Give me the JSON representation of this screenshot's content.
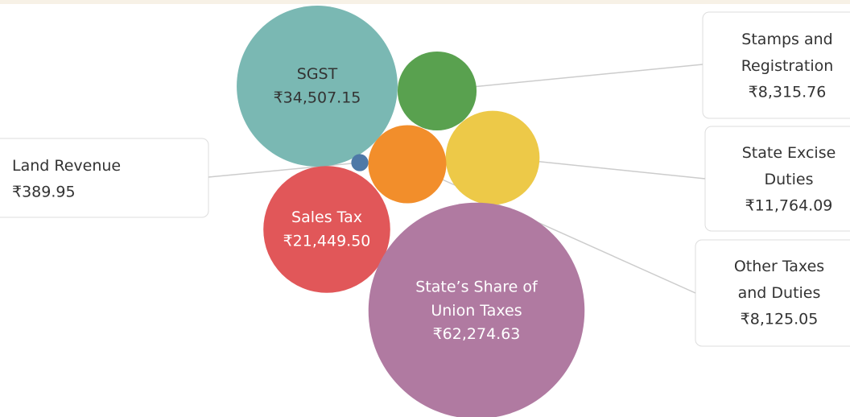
{
  "chart_data": {
    "type": "bubble",
    "categories": [
      "SGST",
      "Stamps and Registration",
      "State Excise Duties",
      "Other Taxes and Duties",
      "Land Revenue",
      "Sales Tax",
      "State’s Share of Union Taxes"
    ],
    "values": [
      34507.15,
      8315.76,
      11764.09,
      8125.05,
      389.95,
      21449.5,
      62274.63
    ],
    "value_labels": [
      "₹34,507.15",
      "₹8,315.76",
      "₹11,764.09",
      "₹8,125.05",
      "₹389.95",
      "₹21,449.50",
      "₹62,274.63"
    ],
    "colors": [
      "#7ab8b3",
      "#59a14f",
      "#edc948",
      "#f28e2b",
      "#4e79a7",
      "#e15759",
      "#b07aa1"
    ]
  }
}
